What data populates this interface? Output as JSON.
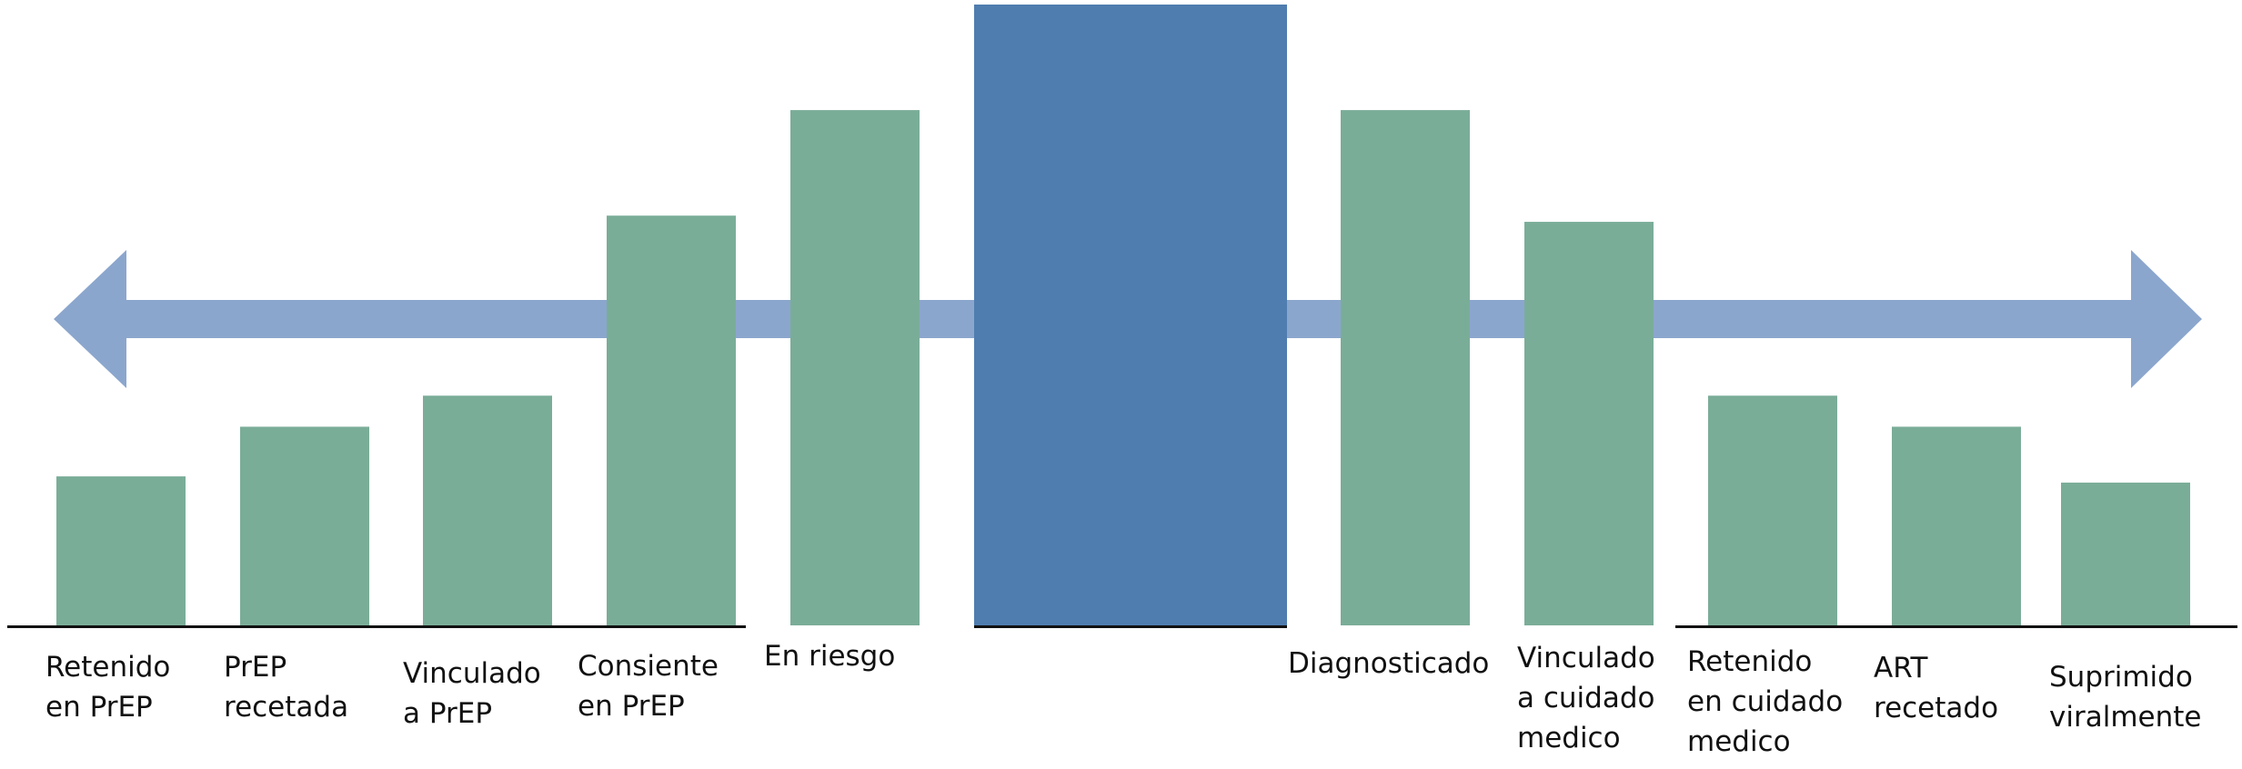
{
  "chart_data": {
    "type": "bar",
    "title": "",
    "xlabel": "",
    "ylabel": "",
    "ylim": [
      0,
      100
    ],
    "grid": false,
    "legend": "none",
    "categories": [
      [
        "Retenido",
        "en PrEP"
      ],
      [
        "PrEP",
        "recetada"
      ],
      [
        "Vinculado",
        "a PrEP"
      ],
      [
        "Consiente",
        "en PrEP"
      ],
      [
        "En riesgo"
      ],
      [],
      [
        "Diagnosticado"
      ],
      [
        "Vinculado",
        "a cuidado",
        "medico"
      ],
      [
        "Retenido",
        "en cuidado",
        "medico"
      ],
      [
        "ART",
        "recetado"
      ],
      [
        "Suprimido",
        "viralmente"
      ]
    ],
    "values": [
      24,
      32,
      37,
      66,
      83,
      100,
      83,
      65,
      37,
      32,
      23
    ],
    "highlight_index": 5,
    "arrow": "double-headed, behind bars",
    "colors": {
      "bar": "#7aad98",
      "highlight_bar": "#4f7daf",
      "arrow": "#8ba6cd",
      "baseline": "#111111",
      "background": "#ffffff"
    }
  }
}
